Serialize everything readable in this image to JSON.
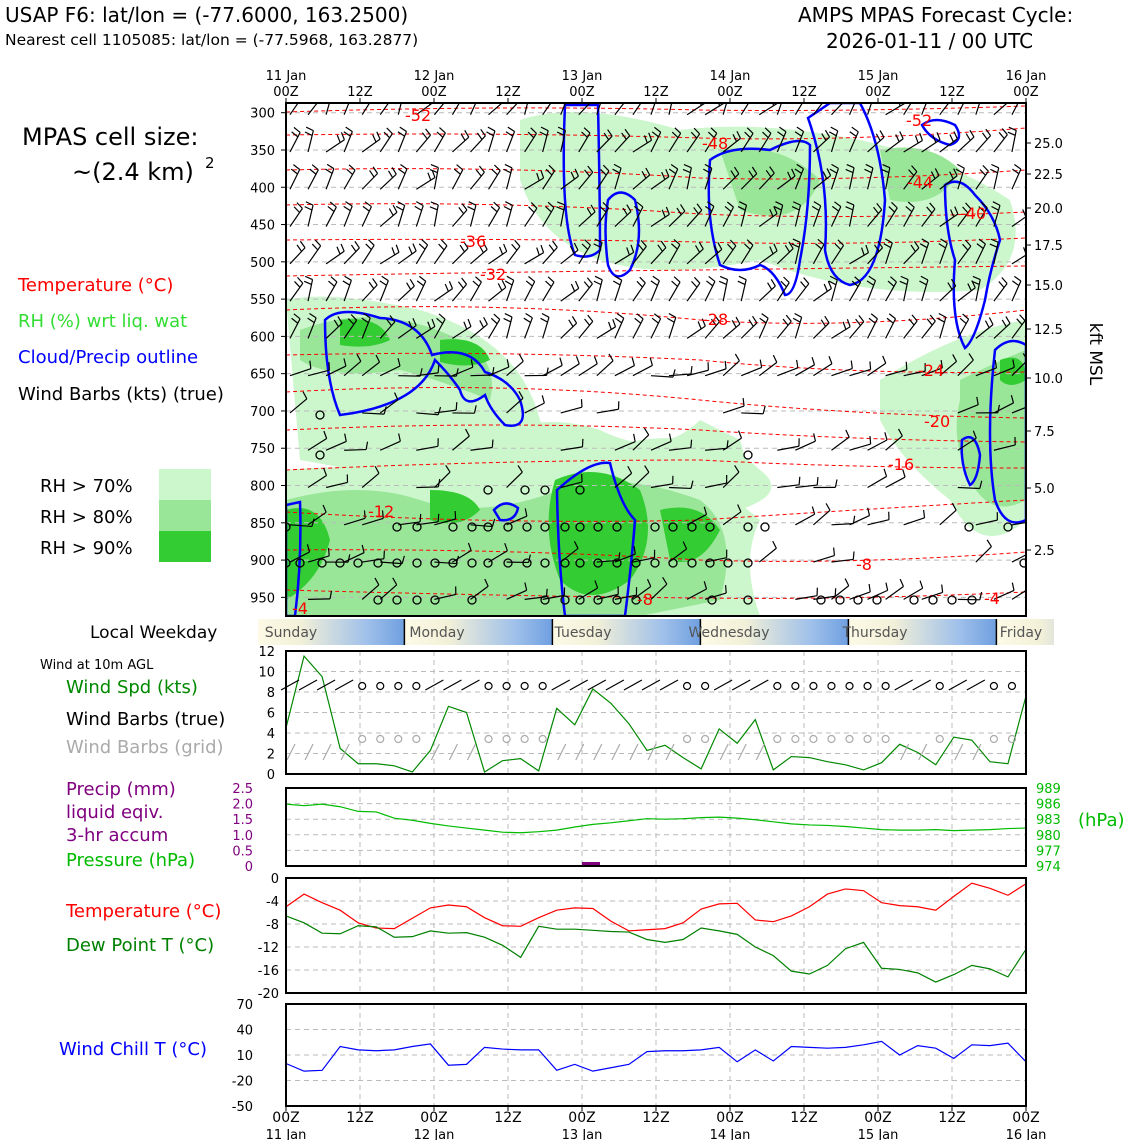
{
  "header": {
    "title": "USAP F6: lat/lon = (-77.6000, 163.2500)",
    "subtitle": "Nearest cell 1105085: lat/lon = (-77.5968, 163.2877)",
    "cycle_label": "AMPS MPAS Forecast Cycle:",
    "cycle_value": "2026-01-11 / 00 UTC"
  },
  "colors": {
    "temperature": "#ff0000",
    "rh_label": "#33dd33",
    "rh70": "#ccf7cc",
    "rh80": "#99e699",
    "rh90": "#33cc33",
    "cloud": "#0000ff",
    "wind_speed": "#008800",
    "precip": "#800080",
    "pressure": "#00bb00",
    "dewpoint": "#008000",
    "windchill": "#0000ff",
    "grid_barb": "#aaaaaa"
  },
  "time_axis": {
    "top_dates": [
      "11 Jan",
      "12 Jan",
      "13 Jan",
      "14 Jan",
      "15 Jan",
      "16 Jan"
    ],
    "ticks": [
      "00Z",
      "12Z",
      "00Z",
      "12Z",
      "00Z",
      "12Z",
      "00Z",
      "12Z",
      "00Z",
      "12Z",
      "00Z"
    ],
    "weekdays": [
      "Sunday",
      "Monday",
      "Tuesday",
      "Wednesday",
      "Thursday",
      "Friday"
    ]
  },
  "cross_section": {
    "legend": {
      "cell_size_line1": "MPAS cell size:",
      "cell_size_line2": "~(2.4 km)",
      "cell_size_sup": "2",
      "temperature": "Temperature (°C)",
      "rh": "RH (%) wrt liq. wat",
      "cloud": "Cloud/Precip outline",
      "barbs": "Wind Barbs (kts) (true)",
      "rh70": "RH > 70%",
      "rh80": "RH > 80%",
      "rh90": "RH > 90%"
    },
    "pressure_ticks": [
      "300",
      "350",
      "400",
      "450",
      "500",
      "550",
      "600",
      "650",
      "700",
      "750",
      "800",
      "850",
      "900",
      "950"
    ],
    "kft_ticks": [
      "25.0",
      "22.5",
      "20.0",
      "17.5",
      "15.0",
      "12.5",
      "10.0",
      "7.5",
      "5.0",
      "2.5"
    ],
    "kft_label": "kft MSL",
    "weekday_label": "Local Weekday"
  },
  "chart_data": [
    {
      "type": "line",
      "title": "",
      "xlabel": "",
      "ylabel": "",
      "panel_label": "Wind at 10m AGL",
      "series": [
        {
          "name": "Wind Spd (kts)",
          "values": [
            4.5,
            11.5,
            9.5,
            2.5,
            1.0,
            1.0,
            0.8,
            0.2,
            2.3,
            6.6,
            6.0,
            0.2,
            1.3,
            1.5,
            0.3,
            6.4,
            4.8,
            8.3,
            6.9,
            4.9,
            2.3,
            2.8,
            1.6,
            0.5,
            4.4,
            3.0,
            5.3,
            0.4,
            1.7,
            1.6,
            1.2,
            0.9,
            0.4,
            1.1,
            2.9,
            2.1,
            0.9,
            3.6,
            3.3,
            1.2,
            1.0,
            7.6
          ]
        },
        {
          "name": "Wind Barbs (true)",
          "values": []
        },
        {
          "name": "Wind Barbs (grid)",
          "values": []
        }
      ],
      "yticks": [
        "0",
        "2",
        "4",
        "6",
        "8",
        "10",
        "12"
      ],
      "ylim": [
        0,
        12
      ]
    },
    {
      "type": "line",
      "title": "",
      "xlabel": "",
      "ylabel": "",
      "series": [
        {
          "name": "Precip (mm)",
          "sublabels": [
            "liquid eqiv.",
            "3-hr accum"
          ],
          "values": []
        },
        {
          "name": "Pressure (hPa)",
          "values": [
            985.9,
            985.6,
            985.9,
            985.4,
            984.5,
            984.4,
            983.2,
            982.8,
            982.2,
            981.7,
            981.3,
            980.9,
            980.5,
            980.4,
            980.6,
            980.9,
            981.5,
            982.0,
            982.3,
            982.7,
            983.1,
            983.0,
            983.1,
            983.3,
            983.4,
            983.2,
            982.9,
            982.5,
            982.1,
            981.9,
            981.8,
            981.6,
            981.3,
            981.0,
            980.9,
            980.9,
            981.0,
            980.8,
            980.9,
            981.0,
            981.2,
            981.3
          ]
        }
      ],
      "unit_label": "(hPa)",
      "yticks_left": [
        "0",
        "0.5",
        "1.0",
        "1.5",
        "2.0",
        "2.5"
      ],
      "yticks_right": [
        "974",
        "977",
        "980",
        "983",
        "986",
        "989"
      ],
      "ylim_left": [
        0,
        2.5
      ],
      "ylim_right": [
        974,
        989
      ]
    },
    {
      "type": "line",
      "title": "",
      "xlabel": "",
      "ylabel": "",
      "series": [
        {
          "name": "Temperature (°C)",
          "values": [
            -5.0,
            -2.8,
            -4.3,
            -5.6,
            -7.8,
            -8.7,
            -8.8,
            -7.0,
            -5.2,
            -4.7,
            -5.0,
            -6.9,
            -8.3,
            -8.4,
            -6.9,
            -5.6,
            -5.2,
            -5.3,
            -7.5,
            -9.2,
            -9.0,
            -8.8,
            -7.8,
            -5.4,
            -4.5,
            -4.4,
            -7.3,
            -7.6,
            -6.6,
            -5.0,
            -2.8,
            -1.9,
            -2.2,
            -4.3,
            -4.8,
            -5.0,
            -5.6,
            -3.2,
            -0.9,
            -1.8,
            -3.0,
            -1.0
          ]
        },
        {
          "name": "Dew Point T (°C)",
          "values": [
            -6.6,
            -7.8,
            -9.6,
            -9.7,
            -8.3,
            -8.5,
            -10.3,
            -10.2,
            -9.2,
            -9.6,
            -9.5,
            -10.3,
            -11.7,
            -13.8,
            -8.4,
            -8.9,
            -8.9,
            -9.1,
            -9.3,
            -9.4,
            -10.7,
            -11.2,
            -10.7,
            -8.7,
            -9.2,
            -9.8,
            -12.0,
            -13.5,
            -16.2,
            -16.7,
            -15.2,
            -12.3,
            -11.2,
            -15.7,
            -15.9,
            -16.5,
            -18.1,
            -16.8,
            -15.2,
            -15.8,
            -17.2,
            -12.4
          ]
        }
      ],
      "yticks": [
        "0",
        "-4",
        "-8",
        "-12",
        "-16",
        "-20"
      ],
      "ylim": [
        -20,
        0
      ]
    },
    {
      "type": "line",
      "title": "",
      "xlabel": "",
      "ylabel": "",
      "series": [
        {
          "name": "Wind Chill T (°C)",
          "values": [
            0,
            -9,
            -8,
            20,
            16,
            15,
            16,
            20,
            23,
            -2,
            -1,
            19,
            17,
            16,
            16,
            -8,
            -1,
            -9,
            -5,
            -1,
            14,
            15,
            15,
            16,
            19,
            2,
            16,
            3,
            20,
            19,
            18,
            19,
            22,
            26,
            10,
            21,
            18,
            6,
            22,
            21,
            24,
            2
          ]
        }
      ],
      "yticks": [
        "70",
        "40",
        "10",
        "-20",
        "-50"
      ],
      "ylim": [
        -50,
        70
      ]
    }
  ]
}
